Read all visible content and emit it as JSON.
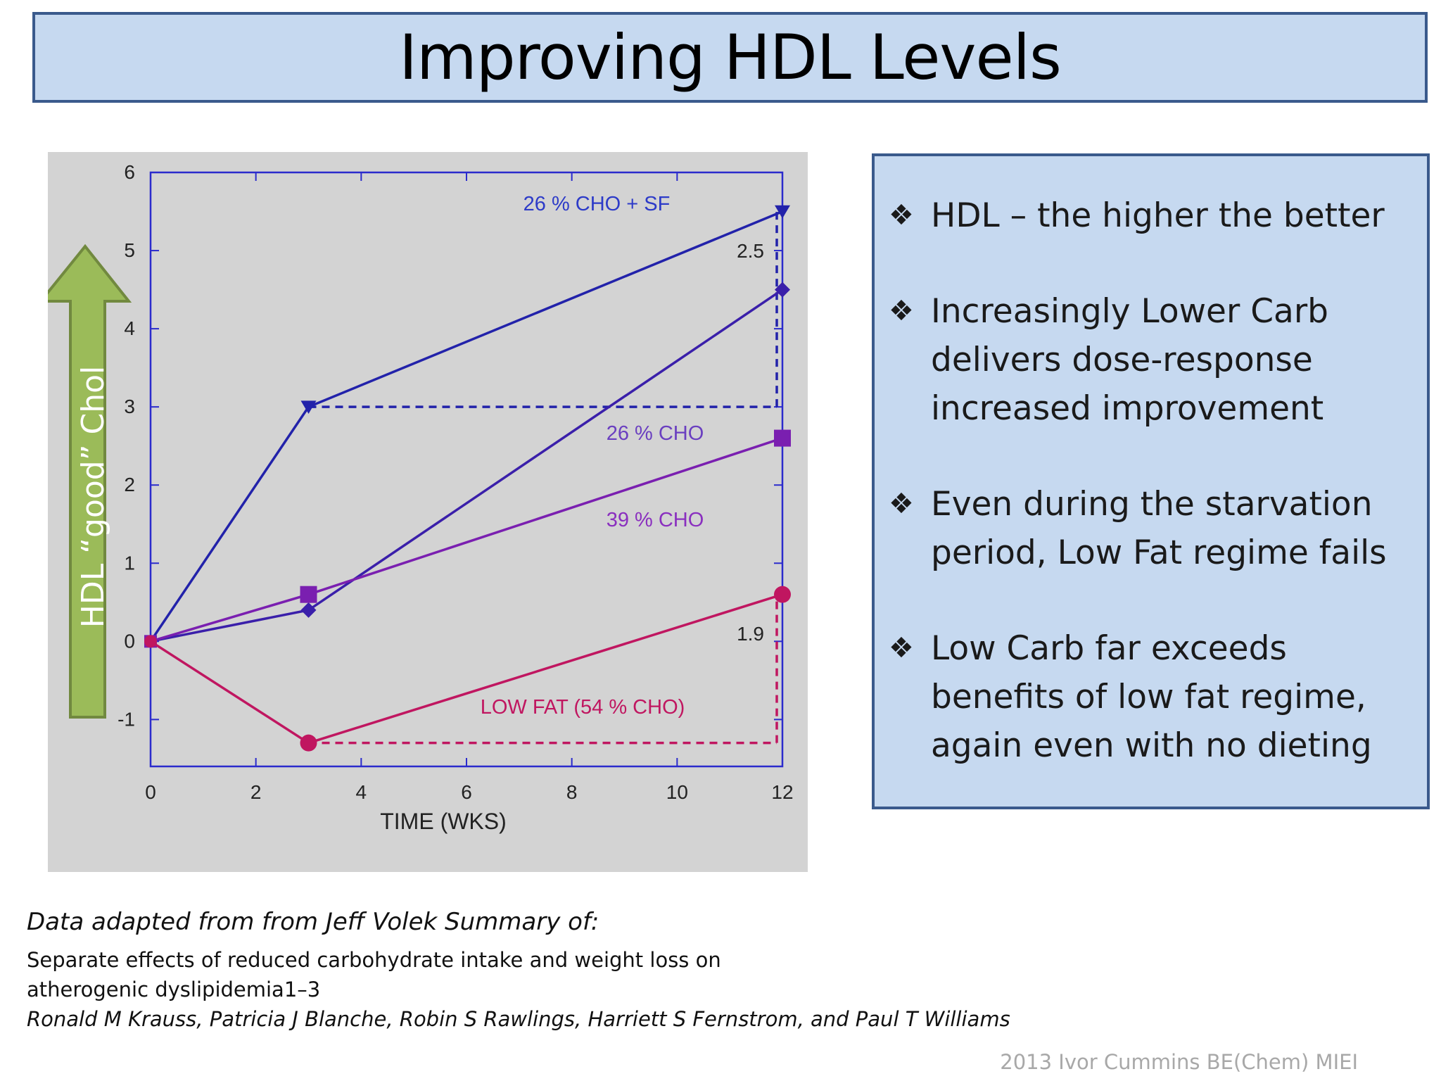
{
  "slide": {
    "title": "Improving HDL Levels",
    "arrow_label": "HDL “good” Chol",
    "bullets": [
      "HDL – the higher the better",
      "Increasingly Lower Carb delivers dose-response increased improvement",
      "Even during the starvation period, Low Fat regime fails",
      "Low Carb far exceeds benefits of low fat regime, again even with no dieting"
    ],
    "bullet_symbol": "❖",
    "source_heading": "Data adapted from from Jeff Volek Summary of:",
    "source_study": "Separate effects of reduced carbohydrate intake and weight loss on atherogenic dyslipidemia1–3",
    "source_authors": "Ronald M Krauss, Patricia J Blanche, Robin S Rawlings, Harriett S Fernstrom, and Paul T Williams",
    "footer": "2013 Ivor Cummins BE(Chem) MIEI"
  },
  "colors": {
    "title_fill": "#c6d9f0",
    "box_border": "#3a5a8c",
    "chart_background": "#d3d3d3",
    "axis": "#2b2bcc",
    "arrow_fill": "#9bbb59",
    "arrow_border": "#71893f",
    "series_26_sf": "#2222aa",
    "series_26": "#3a1faa",
    "series_39": "#7a1fb0",
    "series_low_fat": "#c01660",
    "label_26_sf": "#2d3bc8",
    "label_26": "#6a3fc0",
    "label_39": "#8a2fbf",
    "label_low_fat": "#c01660"
  },
  "chart_data": {
    "type": "line",
    "xlabel": "TIME (WKS)",
    "ylabel": "",
    "xlim": [
      0,
      12
    ],
    "ylim": [
      -1.6,
      6
    ],
    "x_ticks": [
      0,
      2,
      4,
      6,
      8,
      10,
      12
    ],
    "y_ticks": [
      -1,
      0,
      1,
      2,
      3,
      4,
      5,
      6
    ],
    "grid": false,
    "series": [
      {
        "name": "26 % CHO + SF",
        "marker": "triangle-down",
        "x": [
          0,
          3,
          12
        ],
        "y": [
          0,
          3.0,
          5.5
        ]
      },
      {
        "name": "26 % CHO",
        "marker": "diamond",
        "x": [
          0,
          3,
          12
        ],
        "y": [
          0,
          0.4,
          4.5
        ]
      },
      {
        "name": "39 % CHO",
        "marker": "square",
        "x": [
          0,
          3,
          12
        ],
        "y": [
          0,
          0.6,
          2.6
        ]
      },
      {
        "name": "LOW FAT (54 % CHO)",
        "marker": "circle",
        "x": [
          0,
          3,
          12
        ],
        "y": [
          0,
          -1.3,
          0.6
        ]
      }
    ],
    "annotations": [
      {
        "text": "2.5",
        "x1": 3,
        "x2": 12,
        "y_from": 3.0,
        "y_to": 5.5
      },
      {
        "text": "1.9",
        "x1": 3,
        "x2": 12,
        "y_from": -1.3,
        "y_to": 0.6
      }
    ]
  }
}
